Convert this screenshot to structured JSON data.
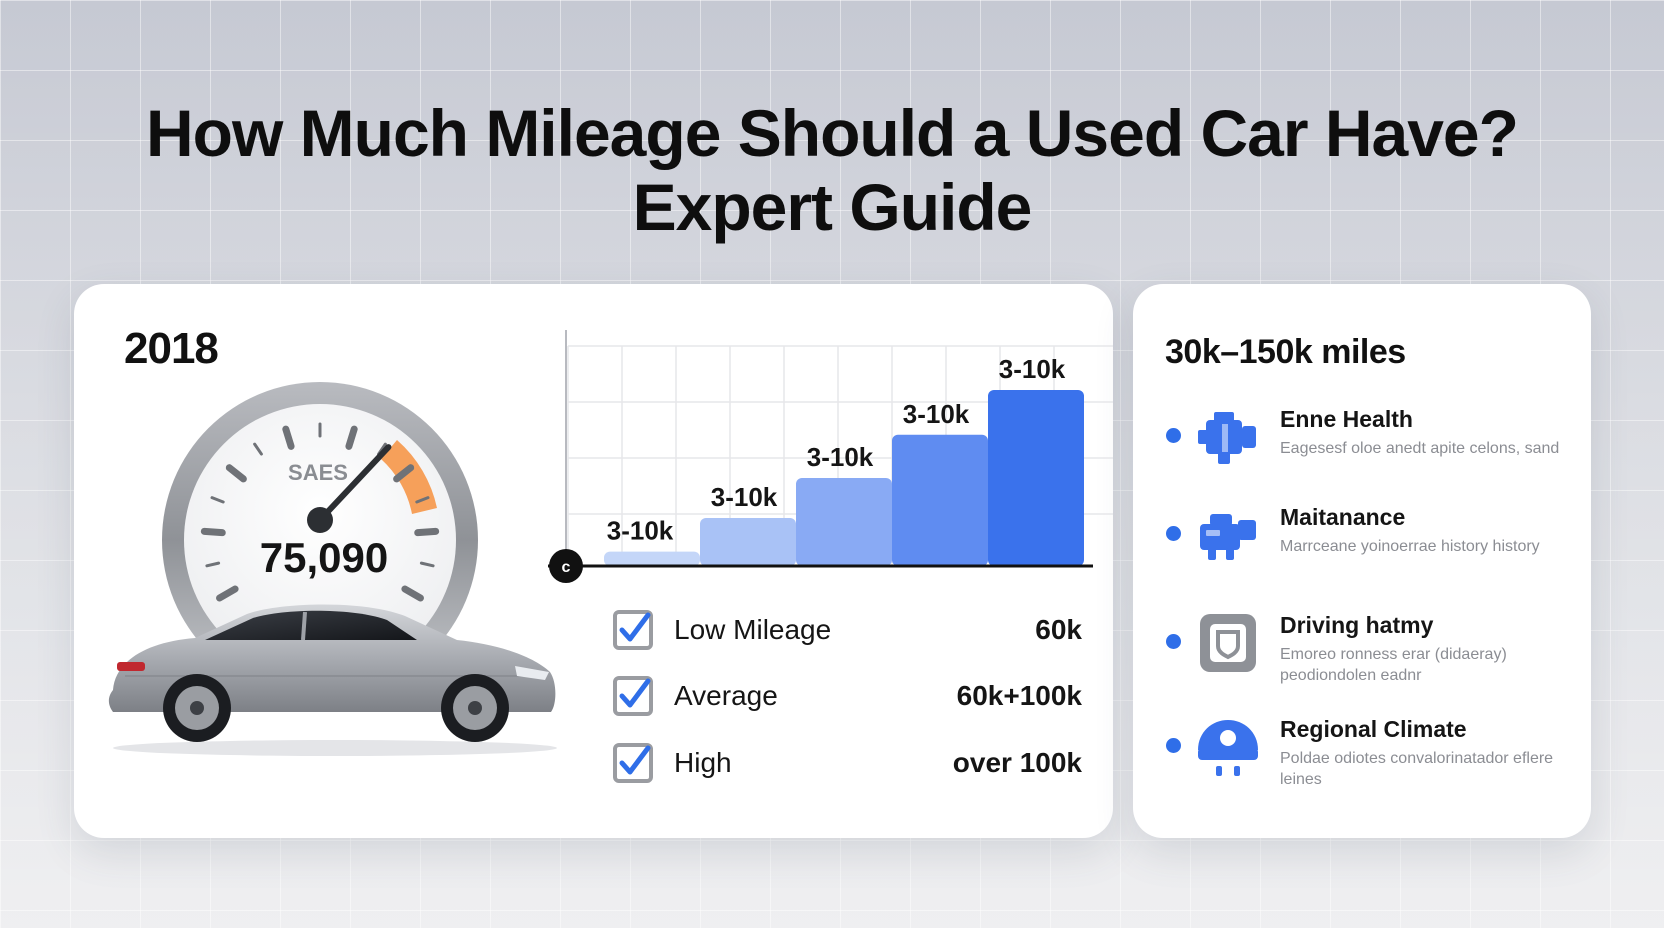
{
  "header": {
    "title_line1": "How Much Mileage Should a Used Car Have?",
    "title_line2": "Expert Guide"
  },
  "main_card": {
    "year": "2018",
    "gauge": {
      "brand": "SAES",
      "reading": "75,090",
      "needle_fraction": 0.68
    },
    "car_icon": "sedan-car-illustration"
  },
  "chart_data": {
    "type": "bar",
    "categories": [
      "",
      "",
      "",
      "",
      ""
    ],
    "values": [
      9,
      30,
      55,
      82,
      110
    ],
    "data_labels": [
      "3-10k",
      "3-10k",
      "3-10k",
      "3-10k",
      "3-10k"
    ],
    "colors": [
      "#c4d6f8",
      "#a9c2f6",
      "#89aaf4",
      "#5f8cf1",
      "#3a72ec"
    ],
    "origin_marker": "c",
    "grid": true,
    "ylim": [
      0,
      150
    ]
  },
  "checklist": [
    {
      "label": "Low Mileage",
      "value": "60k"
    },
    {
      "label": "Average",
      "value": "60k+100k"
    },
    {
      "label": "High",
      "value": "over 100k"
    }
  ],
  "side_card": {
    "title": "30k–150k miles",
    "factors": [
      {
        "name": "Enne Health",
        "desc": "Eagesesf oloe anedt apite celons, sand",
        "icon": "engine-icon"
      },
      {
        "name": "Maitanance",
        "desc": "Marrceane yoinoerrae history history",
        "icon": "vehicle-service-icon"
      },
      {
        "name": "Driving hatmy",
        "desc": "Emoreo ronness erar (didaeray) peodiondolen eadnr",
        "icon": "shield-badge-icon"
      },
      {
        "name": "Regional Climate",
        "desc": "Poldae odiotes convalorinatador eflere leines",
        "icon": "climate-icon"
      }
    ]
  },
  "colors": {
    "accent_blue": "#2f6ee8",
    "gauge_orange": "#f6a05a",
    "text_dark": "#111111",
    "text_muted": "#8b8d93"
  }
}
